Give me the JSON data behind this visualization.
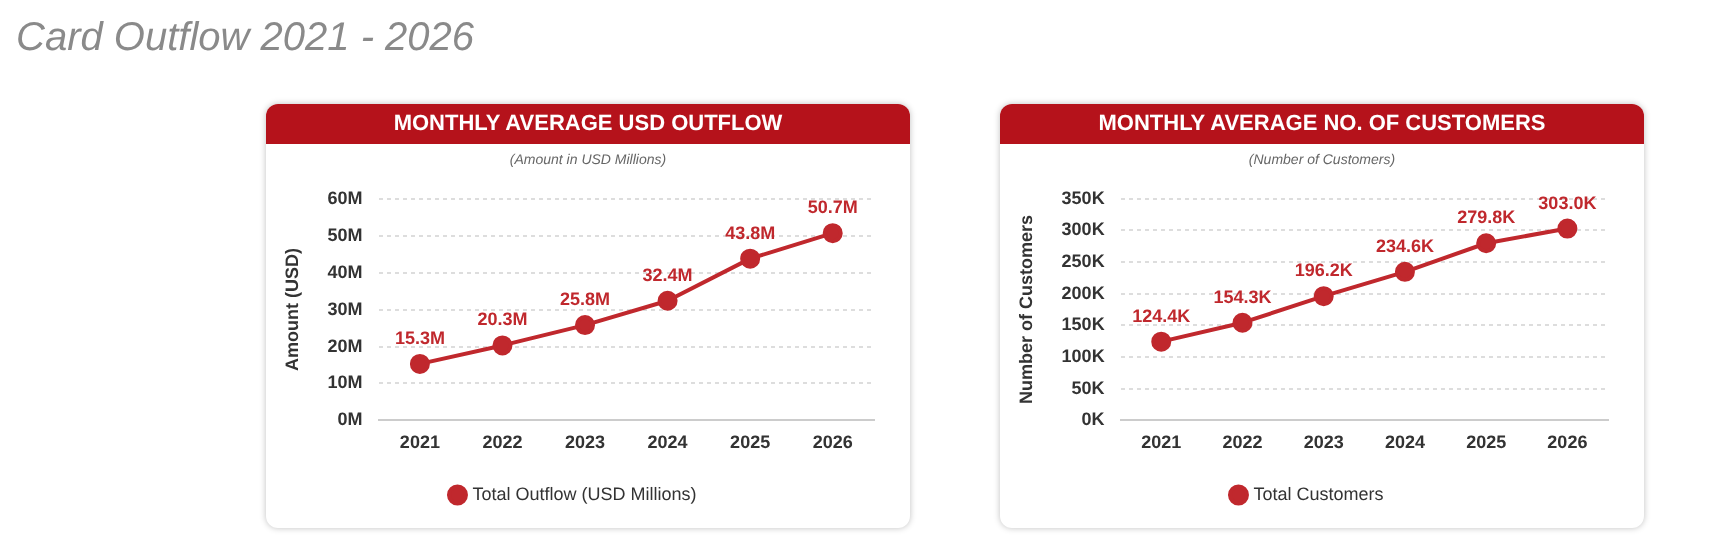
{
  "chart_data": [
    {
      "type": "line",
      "title": "MONTHLY AVERAGE USD OUTFLOW",
      "subtitle": "(Amount in USD Millions)",
      "ylabel": "Amount (USD)",
      "annotations": [
        "Card Outflow 2021 - 2026"
      ],
      "categories": [
        "2021",
        "2022",
        "2023",
        "2024",
        "2025",
        "2026"
      ],
      "series": [
        {
          "name": "Total Outflow (USD Millions)",
          "color": "#c0282d",
          "values": [
            15.3,
            20.3,
            25.8,
            32.4,
            43.8,
            50.7
          ],
          "value_labels": [
            "15.3M",
            "20.3M",
            "25.8M",
            "32.4M",
            "43.8M",
            "50.7M"
          ]
        }
      ],
      "ylim": [
        0,
        60
      ],
      "yticks": [
        {
          "value": 0,
          "label": "0M"
        },
        {
          "value": 10,
          "label": "10M"
        },
        {
          "value": 20,
          "label": "20M"
        },
        {
          "value": 30,
          "label": "30M"
        },
        {
          "value": 40,
          "label": "40M"
        },
        {
          "value": 50,
          "label": "50M"
        },
        {
          "value": 60,
          "label": "60M"
        }
      ],
      "grid": "y",
      "legend": "bottom",
      "marker": "circle",
      "line_style": "solid"
    },
    {
      "type": "line",
      "title": "MONTHLY AVERAGE NO. OF CUSTOMERS",
      "subtitle": "(Number of Customers)",
      "ylabel": "Number of Customers",
      "categories": [
        "2021",
        "2022",
        "2023",
        "2024",
        "2025",
        "2026"
      ],
      "series": [
        {
          "name": "Total Customers",
          "color": "#c0282d",
          "values": [
            124.4,
            154.3,
            196.2,
            234.6,
            279.8,
            303.0
          ],
          "value_labels": [
            "124.4K",
            "154.3K",
            "196.2K",
            "234.6K",
            "279.8K",
            "303.0K"
          ]
        }
      ],
      "ylim": [
        0,
        350
      ],
      "yticks": [
        {
          "value": 0,
          "label": "0K"
        },
        {
          "value": 50,
          "label": "50K"
        },
        {
          "value": 100,
          "label": "100K"
        },
        {
          "value": 150,
          "label": "150K"
        },
        {
          "value": 200,
          "label": "200K"
        },
        {
          "value": 250,
          "label": "250K"
        },
        {
          "value": 300,
          "label": "300K"
        },
        {
          "value": 350,
          "label": "350K"
        }
      ],
      "grid": "y",
      "legend": "bottom",
      "marker": "circle",
      "line_style": "solid"
    }
  ]
}
